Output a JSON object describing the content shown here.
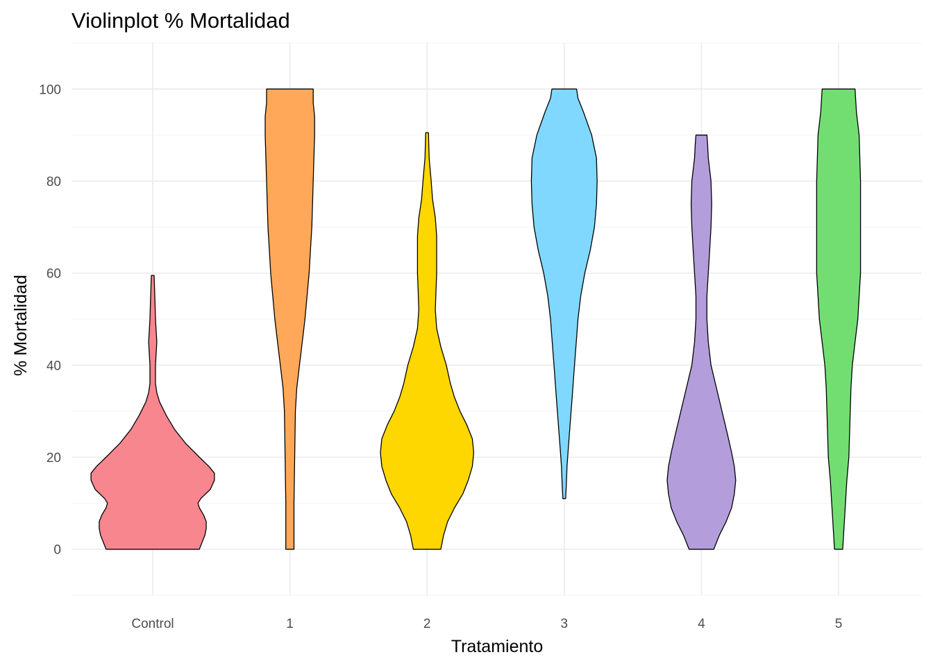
{
  "chart_data": {
    "type": "violin",
    "title": "Violinplot % Mortalidad",
    "xlabel": "Tratamiento",
    "ylabel": "% Mortalidad",
    "ylim": [
      -10,
      110
    ],
    "yticks": [
      0,
      20,
      40,
      60,
      80,
      100
    ],
    "grid": true,
    "legend": "none",
    "categories": [
      "Control",
      "1",
      "2",
      "3",
      "4",
      "5"
    ],
    "series": [
      {
        "category": "Control",
        "color": "#F8868F",
        "range": [
          0,
          59.5
        ],
        "half_width_profile": [
          [
            0,
            0.34
          ],
          [
            1.5,
            0.36
          ],
          [
            3,
            0.38
          ],
          [
            4.5,
            0.39
          ],
          [
            6,
            0.39
          ],
          [
            7.5,
            0.37
          ],
          [
            9,
            0.34
          ],
          [
            10,
            0.33
          ],
          [
            11,
            0.35
          ],
          [
            13,
            0.42
          ],
          [
            15,
            0.45
          ],
          [
            16.5,
            0.45
          ],
          [
            18,
            0.41
          ],
          [
            20,
            0.34
          ],
          [
            23,
            0.24
          ],
          [
            26,
            0.16
          ],
          [
            29,
            0.1
          ],
          [
            32,
            0.05
          ],
          [
            34,
            0.03
          ],
          [
            36,
            0.02
          ],
          [
            40,
            0.02
          ],
          [
            45,
            0.03
          ],
          [
            50,
            0.02
          ],
          [
            55,
            0.015
          ],
          [
            59.5,
            0.01
          ]
        ]
      },
      {
        "category": "1",
        "color": "#FFA85A",
        "range": [
          0,
          100
        ],
        "half_width_profile": [
          [
            0,
            0.03
          ],
          [
            10,
            0.03
          ],
          [
            20,
            0.035
          ],
          [
            30,
            0.04
          ],
          [
            35,
            0.05
          ],
          [
            40,
            0.07
          ],
          [
            45,
            0.09
          ],
          [
            50,
            0.11
          ],
          [
            55,
            0.125
          ],
          [
            60,
            0.14
          ],
          [
            65,
            0.15
          ],
          [
            70,
            0.16
          ],
          [
            75,
            0.165
          ],
          [
            80,
            0.17
          ],
          [
            85,
            0.175
          ],
          [
            90,
            0.18
          ],
          [
            94,
            0.18
          ],
          [
            97,
            0.17
          ],
          [
            100,
            0.17
          ]
        ]
      },
      {
        "category": "2",
        "color": "#FFD700",
        "range": [
          0,
          90.5
        ],
        "half_width_profile": [
          [
            0,
            0.1
          ],
          [
            3,
            0.12
          ],
          [
            6,
            0.15
          ],
          [
            9,
            0.2
          ],
          [
            12,
            0.26
          ],
          [
            15,
            0.3
          ],
          [
            18,
            0.33
          ],
          [
            21,
            0.34
          ],
          [
            24,
            0.33
          ],
          [
            27,
            0.29
          ],
          [
            30,
            0.24
          ],
          [
            33,
            0.2
          ],
          [
            36,
            0.17
          ],
          [
            40,
            0.14
          ],
          [
            44,
            0.1
          ],
          [
            48,
            0.07
          ],
          [
            52,
            0.06
          ],
          [
            56,
            0.065
          ],
          [
            60,
            0.07
          ],
          [
            64,
            0.07
          ],
          [
            68,
            0.07
          ],
          [
            72,
            0.06
          ],
          [
            76,
            0.04
          ],
          [
            80,
            0.03
          ],
          [
            85,
            0.015
          ],
          [
            90.5,
            0.01
          ]
        ]
      },
      {
        "category": "3",
        "color": "#80D8FF",
        "range": [
          11,
          100
        ],
        "half_width_profile": [
          [
            11,
            0.01
          ],
          [
            14,
            0.015
          ],
          [
            18,
            0.02
          ],
          [
            22,
            0.03
          ],
          [
            26,
            0.04
          ],
          [
            30,
            0.05
          ],
          [
            34,
            0.06
          ],
          [
            38,
            0.07
          ],
          [
            42,
            0.08
          ],
          [
            46,
            0.09
          ],
          [
            50,
            0.1
          ],
          [
            55,
            0.12
          ],
          [
            60,
            0.15
          ],
          [
            65,
            0.19
          ],
          [
            70,
            0.22
          ],
          [
            75,
            0.235
          ],
          [
            80,
            0.24
          ],
          [
            85,
            0.235
          ],
          [
            90,
            0.2
          ],
          [
            95,
            0.14
          ],
          [
            98,
            0.1
          ],
          [
            100,
            0.09
          ]
        ]
      },
      {
        "category": "4",
        "color": "#B39DDB",
        "range": [
          0,
          90
        ],
        "half_width_profile": [
          [
            0,
            0.09
          ],
          [
            3,
            0.13
          ],
          [
            6,
            0.18
          ],
          [
            9,
            0.22
          ],
          [
            12,
            0.24
          ],
          [
            15,
            0.25
          ],
          [
            18,
            0.24
          ],
          [
            21,
            0.22
          ],
          [
            25,
            0.19
          ],
          [
            30,
            0.15
          ],
          [
            35,
            0.11
          ],
          [
            40,
            0.07
          ],
          [
            45,
            0.05
          ],
          [
            50,
            0.04
          ],
          [
            55,
            0.04
          ],
          [
            60,
            0.05
          ],
          [
            65,
            0.06
          ],
          [
            70,
            0.07
          ],
          [
            75,
            0.075
          ],
          [
            80,
            0.07
          ],
          [
            85,
            0.05
          ],
          [
            88,
            0.045
          ],
          [
            90,
            0.04
          ]
        ]
      },
      {
        "category": "5",
        "color": "#72DE72",
        "range": [
          0,
          100
        ],
        "half_width_profile": [
          [
            0,
            0.03
          ],
          [
            5,
            0.04
          ],
          [
            10,
            0.05
          ],
          [
            15,
            0.06
          ],
          [
            20,
            0.075
          ],
          [
            25,
            0.08
          ],
          [
            30,
            0.085
          ],
          [
            35,
            0.09
          ],
          [
            40,
            0.1
          ],
          [
            45,
            0.12
          ],
          [
            50,
            0.14
          ],
          [
            55,
            0.15
          ],
          [
            60,
            0.16
          ],
          [
            65,
            0.16
          ],
          [
            70,
            0.16
          ],
          [
            75,
            0.16
          ],
          [
            80,
            0.16
          ],
          [
            85,
            0.155
          ],
          [
            90,
            0.15
          ],
          [
            95,
            0.13
          ],
          [
            100,
            0.12
          ]
        ]
      }
    ]
  }
}
